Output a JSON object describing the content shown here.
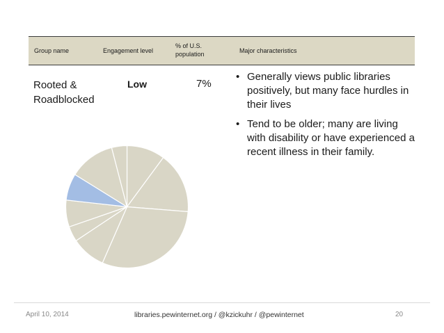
{
  "table": {
    "headers": {
      "group": "Group name",
      "level": "Engagement level",
      "population": "% of U.S. population",
      "characteristics": "Major characteristics"
    },
    "row": {
      "name": "Rooted & Roadblocked",
      "level": "Low",
      "percent": "7%",
      "bullets": [
        "Generally views public libraries positively, but many face hurdles in their lives",
        "Tend to be older; many are living with disability or have experienced a recent illness in their family."
      ]
    }
  },
  "pie": {
    "slices": [
      {
        "share": 10,
        "color": "#d9d6c6"
      },
      {
        "share": 16,
        "color": "#d9d6c6"
      },
      {
        "share": 30,
        "color": "#d9d6c6"
      },
      {
        "share": 9,
        "color": "#d9d6c6"
      },
      {
        "share": 4,
        "color": "#d9d6c6"
      },
      {
        "share": 7,
        "color": "#d9d6c6"
      },
      {
        "share": 7,
        "color": "#a3bde4",
        "highlight": true
      },
      {
        "share": 12,
        "color": "#d9d6c6"
      },
      {
        "share": 4,
        "color": "#d9d6c6"
      }
    ]
  },
  "footer": {
    "date": "April 10, 2014",
    "center": "libraries.pewinternet.org   /   @kzickuhr   /   @pewinternet",
    "page": "20"
  }
}
